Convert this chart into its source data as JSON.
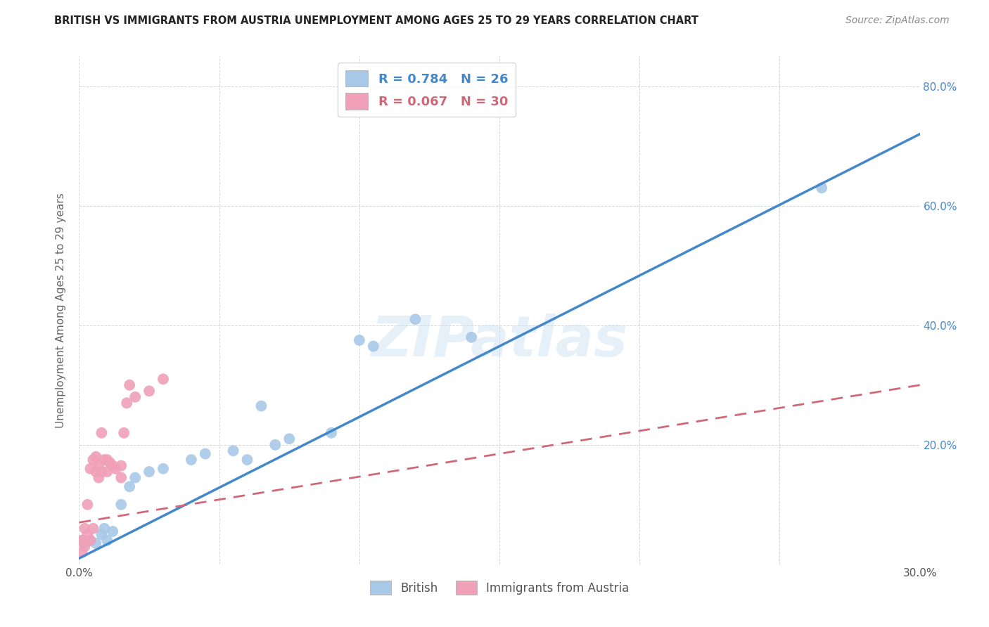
{
  "title": "BRITISH VS IMMIGRANTS FROM AUSTRIA UNEMPLOYMENT AMONG AGES 25 TO 29 YEARS CORRELATION CHART",
  "source": "Source: ZipAtlas.com",
  "ylabel": "Unemployment Among Ages 25 to 29 years",
  "xlim": [
    0.0,
    0.3
  ],
  "ylim": [
    0.0,
    0.85
  ],
  "british_R": 0.784,
  "british_N": 26,
  "austrian_R": 0.067,
  "austrian_N": 30,
  "british_color": "#a8c8e8",
  "british_line_color": "#4488cc",
  "austrian_color": "#f0a0b8",
  "austrian_line_color": "#d06878",
  "watermark_text": "ZIPatlas",
  "british_x": [
    0.001,
    0.002,
    0.004,
    0.006,
    0.008,
    0.009,
    0.01,
    0.012,
    0.015,
    0.018,
    0.02,
    0.025,
    0.03,
    0.04,
    0.045,
    0.055,
    0.06,
    0.065,
    0.07,
    0.075,
    0.09,
    0.1,
    0.105,
    0.12,
    0.14,
    0.265
  ],
  "british_y": [
    0.04,
    0.035,
    0.04,
    0.035,
    0.05,
    0.06,
    0.04,
    0.055,
    0.1,
    0.13,
    0.145,
    0.155,
    0.16,
    0.175,
    0.185,
    0.19,
    0.175,
    0.265,
    0.2,
    0.21,
    0.22,
    0.375,
    0.365,
    0.41,
    0.38,
    0.63
  ],
  "austrian_x": [
    0.001,
    0.001,
    0.002,
    0.002,
    0.003,
    0.003,
    0.004,
    0.004,
    0.005,
    0.005,
    0.006,
    0.006,
    0.007,
    0.007,
    0.008,
    0.008,
    0.009,
    0.01,
    0.01,
    0.011,
    0.012,
    0.013,
    0.015,
    0.015,
    0.016,
    0.017,
    0.018,
    0.02,
    0.025,
    0.03
  ],
  "austrian_y": [
    0.02,
    0.04,
    0.03,
    0.06,
    0.05,
    0.1,
    0.04,
    0.16,
    0.06,
    0.175,
    0.155,
    0.18,
    0.145,
    0.165,
    0.155,
    0.22,
    0.175,
    0.155,
    0.175,
    0.17,
    0.165,
    0.16,
    0.145,
    0.165,
    0.22,
    0.27,
    0.3,
    0.28,
    0.29,
    0.31
  ],
  "british_line_x": [
    0.0,
    0.3
  ],
  "british_line_y": [
    0.01,
    0.72
  ],
  "austrian_line_x": [
    0.0,
    0.3
  ],
  "austrian_line_y": [
    0.07,
    0.3
  ]
}
